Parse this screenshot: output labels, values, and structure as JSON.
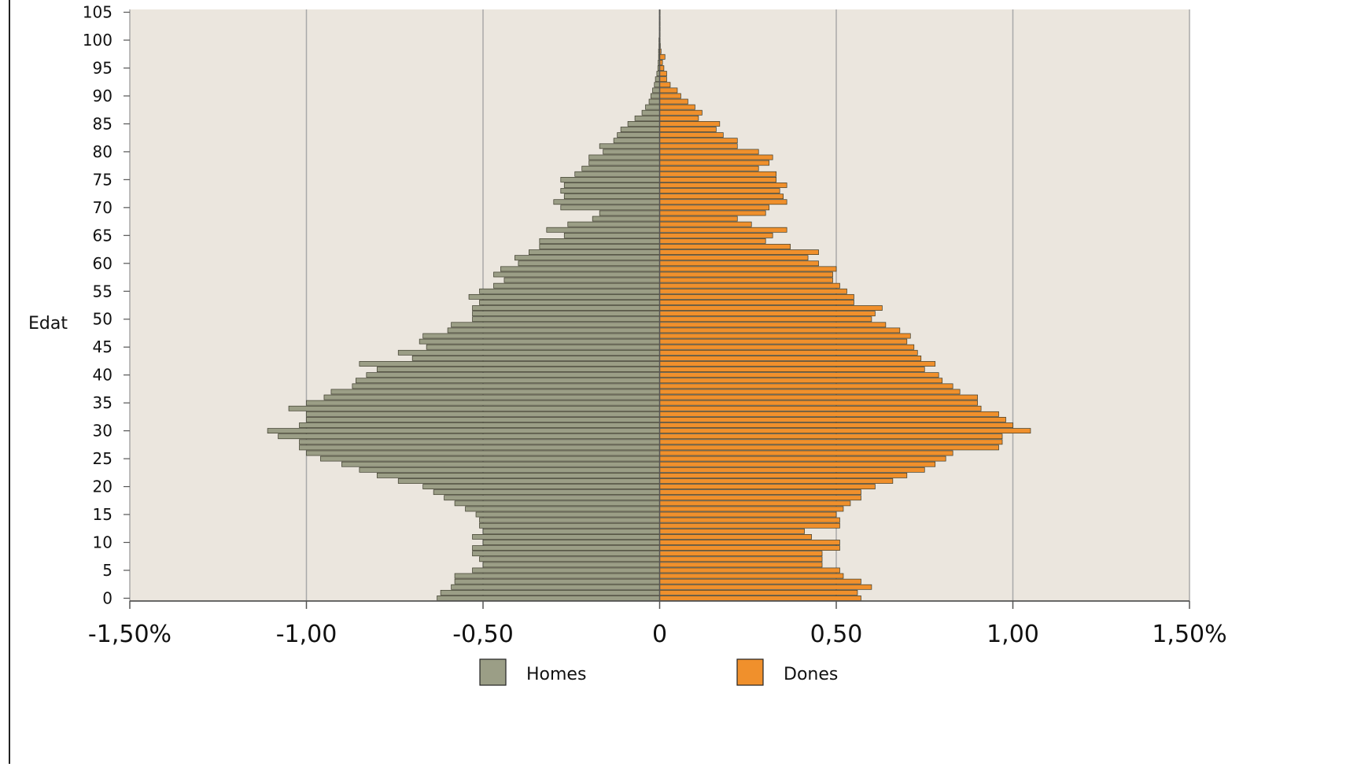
{
  "chart_data": {
    "type": "bar",
    "orientation": "horizontal",
    "ylabel": "Edat",
    "y_ticks": [
      0,
      5,
      10,
      15,
      20,
      25,
      30,
      35,
      40,
      45,
      50,
      55,
      60,
      65,
      70,
      75,
      80,
      85,
      90,
      95,
      100,
      105
    ],
    "y_tick_labels": [
      "0",
      "5",
      "10",
      "15",
      "20",
      "25",
      "30",
      "35",
      "40",
      "45",
      "50",
      "55",
      "60",
      "65",
      "70",
      "75",
      "80",
      "85",
      "90",
      "95",
      "100",
      "105"
    ],
    "x_ticks": [
      -1.5,
      -1.0,
      -0.5,
      0,
      0.5,
      1.0,
      1.5
    ],
    "x_tick_labels": [
      "-1,50%",
      "-1,00",
      "-0,50",
      "0",
      "0,50",
      "1,00",
      "1,50%"
    ],
    "xlim": [
      -1.5,
      1.5
    ],
    "ylim": [
      -0.5,
      105.5
    ],
    "grid": "vertical",
    "legend_position": "bottom",
    "plot_background": "#ebe6de",
    "ages": [
      0,
      1,
      2,
      3,
      4,
      5,
      6,
      7,
      8,
      9,
      10,
      11,
      12,
      13,
      14,
      15,
      16,
      17,
      18,
      19,
      20,
      21,
      22,
      23,
      24,
      25,
      26,
      27,
      28,
      29,
      30,
      31,
      32,
      33,
      34,
      35,
      36,
      37,
      38,
      39,
      40,
      41,
      42,
      43,
      44,
      45,
      46,
      47,
      48,
      49,
      50,
      51,
      52,
      53,
      54,
      55,
      56,
      57,
      58,
      59,
      60,
      61,
      62,
      63,
      64,
      65,
      66,
      67,
      68,
      69,
      70,
      71,
      72,
      73,
      74,
      75,
      76,
      77,
      78,
      79,
      80,
      81,
      82,
      83,
      84,
      85,
      86,
      87,
      88,
      89,
      90,
      91,
      92,
      93,
      94,
      95,
      96,
      97,
      98,
      99,
      100,
      101,
      102,
      103,
      104,
      105
    ],
    "series": [
      {
        "name": "Homes",
        "color": "#9b9e86",
        "values": [
          -0.63,
          -0.62,
          -0.59,
          -0.58,
          -0.58,
          -0.53,
          -0.5,
          -0.51,
          -0.53,
          -0.53,
          -0.5,
          -0.53,
          -0.5,
          -0.51,
          -0.51,
          -0.52,
          -0.55,
          -0.58,
          -0.61,
          -0.64,
          -0.67,
          -0.74,
          -0.8,
          -0.85,
          -0.9,
          -0.96,
          -1.0,
          -1.02,
          -1.02,
          -1.08,
          -1.11,
          -1.02,
          -1.0,
          -1.0,
          -1.05,
          -1.0,
          -0.95,
          -0.93,
          -0.87,
          -0.86,
          -0.83,
          -0.8,
          -0.85,
          -0.7,
          -0.74,
          -0.66,
          -0.68,
          -0.67,
          -0.6,
          -0.59,
          -0.53,
          -0.53,
          -0.53,
          -0.51,
          -0.54,
          -0.51,
          -0.47,
          -0.44,
          -0.47,
          -0.45,
          -0.4,
          -0.41,
          -0.37,
          -0.34,
          -0.34,
          -0.27,
          -0.32,
          -0.26,
          -0.19,
          -0.17,
          -0.28,
          -0.3,
          -0.27,
          -0.28,
          -0.27,
          -0.28,
          -0.24,
          -0.22,
          -0.2,
          -0.2,
          -0.16,
          -0.17,
          -0.13,
          -0.12,
          -0.11,
          -0.09,
          -0.07,
          -0.05,
          -0.04,
          -0.03,
          -0.025,
          -0.02,
          -0.015,
          -0.012,
          -0.008,
          -0.005,
          -0.004,
          -0.003,
          -0.003,
          -0.002,
          -0.002,
          -0.001,
          -0.001,
          -0.001,
          -0.001,
          -0.001
        ]
      },
      {
        "name": "Dones",
        "color": "#f0902c",
        "values": [
          0.57,
          0.56,
          0.6,
          0.57,
          0.52,
          0.51,
          0.46,
          0.46,
          0.46,
          0.51,
          0.51,
          0.43,
          0.41,
          0.51,
          0.51,
          0.5,
          0.52,
          0.54,
          0.57,
          0.57,
          0.61,
          0.66,
          0.7,
          0.75,
          0.78,
          0.81,
          0.83,
          0.96,
          0.97,
          0.97,
          1.05,
          1.0,
          0.98,
          0.96,
          0.91,
          0.9,
          0.9,
          0.85,
          0.83,
          0.8,
          0.79,
          0.75,
          0.78,
          0.74,
          0.73,
          0.72,
          0.7,
          0.71,
          0.68,
          0.64,
          0.6,
          0.61,
          0.63,
          0.55,
          0.55,
          0.53,
          0.51,
          0.49,
          0.49,
          0.5,
          0.45,
          0.42,
          0.45,
          0.37,
          0.3,
          0.32,
          0.36,
          0.26,
          0.22,
          0.3,
          0.31,
          0.36,
          0.35,
          0.34,
          0.36,
          0.33,
          0.33,
          0.28,
          0.31,
          0.32,
          0.28,
          0.22,
          0.22,
          0.18,
          0.16,
          0.17,
          0.11,
          0.12,
          0.1,
          0.08,
          0.06,
          0.05,
          0.03,
          0.02,
          0.02,
          0.012,
          0.008,
          0.015,
          0.004,
          0.002,
          0.001,
          0.001,
          0.001,
          0.001,
          0.001,
          0.001
        ]
      }
    ]
  }
}
